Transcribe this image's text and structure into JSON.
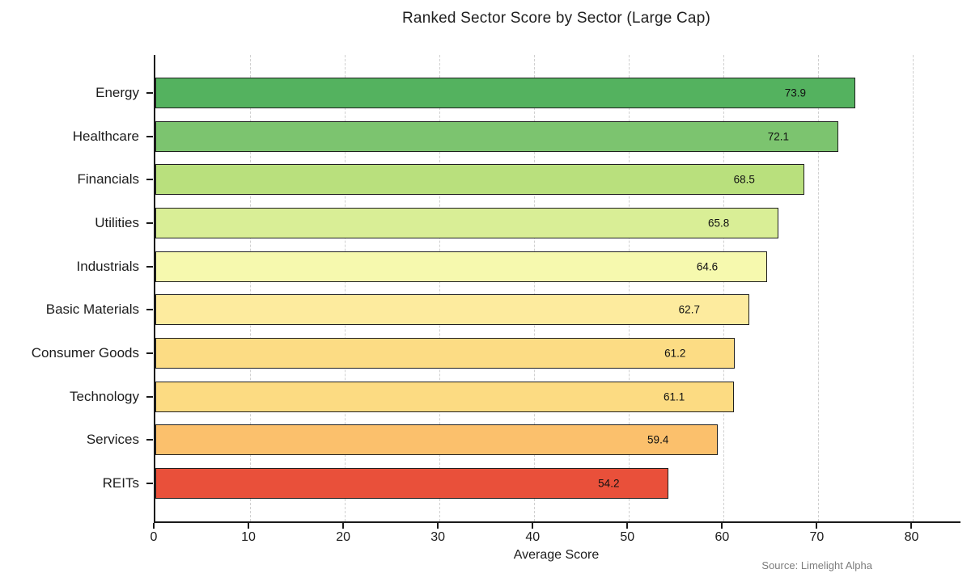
{
  "title": "Ranked Sector Score by Sector (Large Cap)",
  "source": "Source: Limelight Alpha",
  "colors": {
    "axis": "#1a1a1a",
    "grid": "#d0d0d0",
    "text": "#1c1c1c",
    "source_text": "#7c7c7c",
    "bar_edge": "#1f1f1f"
  },
  "chart_data": {
    "type": "bar",
    "orientation": "horizontal",
    "title": "Ranked Sector Score by Sector (Large Cap)",
    "xlabel": "Average Score",
    "ylabel": "",
    "xlim": [
      0,
      85
    ],
    "xticks": [
      0,
      10,
      20,
      30,
      40,
      50,
      60,
      70,
      80
    ],
    "grid": "vertical dashed gridlines at x ticks",
    "legend": "none",
    "categories": [
      "Energy",
      "Healthcare",
      "Financials",
      "Utilities",
      "Industrials",
      "Basic Materials",
      "Consumer Goods",
      "Technology",
      "Services",
      "REITs"
    ],
    "values": [
      73.9,
      72.1,
      68.5,
      65.8,
      64.6,
      62.7,
      61.2,
      61.1,
      59.4,
      54.2
    ],
    "bar_colors": [
      "#54b25f",
      "#7cc46f",
      "#b9e07d",
      "#d9ee96",
      "#f6f9ae",
      "#fdeb9e",
      "#fcdc84",
      "#fcdb82",
      "#fbc06c",
      "#e9503a"
    ],
    "value_label_decimals": 1
  }
}
